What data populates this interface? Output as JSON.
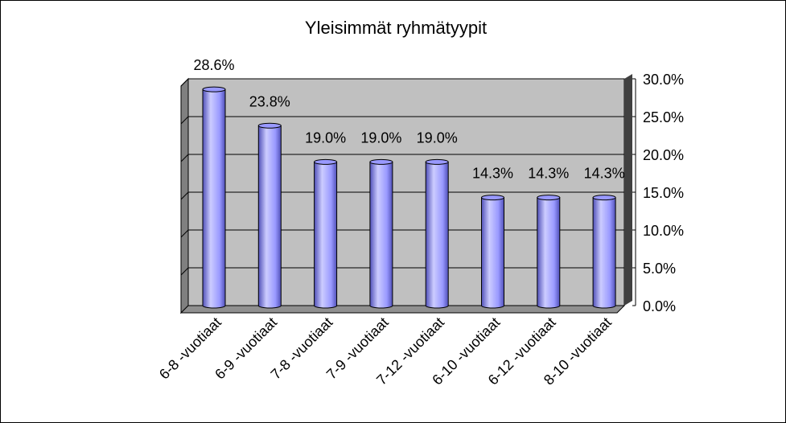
{
  "chart_data": {
    "type": "bar",
    "title": "Yleisimmät ryhmätyypit",
    "categories": [
      "6-8 -vuotiaat",
      "6-9 -vuotiaat",
      "7-8 -vuotiaat",
      "7-9 -vuotiaat",
      "7-12 -vuotiaat",
      "6-10 -vuotiaat",
      "6-12 -vuotiaat",
      "8-10 -vuotiaat"
    ],
    "values": [
      28.6,
      23.8,
      19.0,
      19.0,
      19.0,
      14.3,
      14.3,
      14.3
    ],
    "data_labels": [
      "28.6%",
      "23.8%",
      "19.0%",
      "19.0%",
      "19.0%",
      "14.3%",
      "14.3%",
      "14.3%"
    ],
    "ylim": [
      0,
      30
    ],
    "y_ticks": [
      "0.0%",
      "5.0%",
      "10.0%",
      "15.0%",
      "20.0%",
      "25.0%",
      "30.0%"
    ],
    "y_axis_side": "right",
    "grid": true,
    "legend": false,
    "colors": {
      "bar_fill": "#9999ff",
      "bar_light": "#ccccff",
      "bar_dark": "#5050b8",
      "plot_back": "#c0c0c0",
      "wall_side": "#808080",
      "floor": "#909090"
    }
  }
}
